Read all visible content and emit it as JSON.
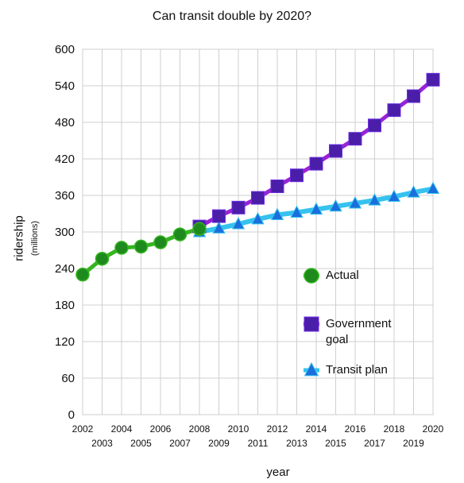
{
  "chart_data": {
    "type": "line",
    "title": "Can transit double by 2020?",
    "ylabel": "ridership",
    "ylabel_unit": "(millions)",
    "xlabel": "year",
    "xlim": [
      2002,
      2020
    ],
    "ylim": [
      0,
      600
    ],
    "y_ticks": [
      "0",
      "60",
      "120",
      "180",
      "240",
      "300",
      "360",
      "420",
      "480",
      "540",
      "600"
    ],
    "x_ticks": [
      "2002",
      "2003",
      "2004",
      "2005",
      "2006",
      "2007",
      "2008",
      "2009",
      "2010",
      "2011",
      "2012",
      "2013",
      "2014",
      "2015",
      "2016",
      "2017",
      "2018",
      "2019",
      "2020"
    ],
    "grid": true,
    "legend_position": "right",
    "series": [
      {
        "name": "Actual",
        "marker": "circle",
        "color": "#1e8a1e",
        "line_color": "#35b51f",
        "x": [
          2002,
          2003,
          2004,
          2005,
          2006,
          2007,
          2008
        ],
        "y": [
          230,
          256,
          274,
          276,
          283,
          296,
          305
        ]
      },
      {
        "name": "Government goal",
        "marker": "square",
        "color": "#4a1ea8",
        "line_color": "#9b22d6",
        "x": [
          2008,
          2009,
          2010,
          2011,
          2012,
          2013,
          2014,
          2015,
          2016,
          2017,
          2018,
          2019,
          2020
        ],
        "y": [
          309,
          326,
          340,
          356,
          375,
          393,
          412,
          433,
          453,
          475,
          500,
          523,
          550
        ]
      },
      {
        "name": "Transit plan",
        "marker": "triangle",
        "color": "#1a6fdc",
        "line_color": "#35c2ee",
        "x": [
          2008,
          2009,
          2010,
          2011,
          2012,
          2013,
          2014,
          2015,
          2016,
          2017,
          2018,
          2019,
          2020
        ],
        "y": [
          300,
          306,
          313,
          321,
          328,
          332,
          337,
          342,
          347,
          352,
          358,
          365,
          371
        ]
      }
    ]
  },
  "legend": {
    "actual": "Actual",
    "government_line1": "Government",
    "government_line2": "goal",
    "transit": "Transit plan"
  }
}
